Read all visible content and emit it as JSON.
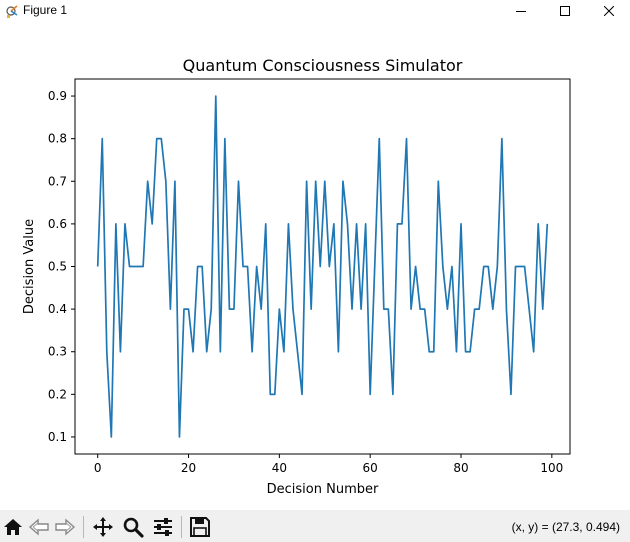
{
  "window": {
    "title": "Figure 1",
    "icons": {
      "app": "matplotlib-figure-icon",
      "minimize": "minimize-icon",
      "maximize": "maximize-icon",
      "close": "close-icon"
    }
  },
  "toolbar": {
    "tools": [
      {
        "name": "home",
        "icon": "home-icon"
      },
      {
        "name": "back",
        "icon": "back-arrow-icon"
      },
      {
        "name": "forward",
        "icon": "forward-arrow-icon"
      },
      {
        "name": "pan",
        "icon": "pan-move-icon"
      },
      {
        "name": "zoom",
        "icon": "zoom-magnifier-icon"
      },
      {
        "name": "configure-subplots",
        "icon": "sliders-icon"
      },
      {
        "name": "save",
        "icon": "save-disk-icon"
      }
    ],
    "coordinates": "(x, y) = (27.3, 0.494)"
  },
  "chart_data": {
    "type": "line",
    "title": "Quantum Consciousness Simulator",
    "xlabel": "Decision Number",
    "ylabel": "Decision Value",
    "xlim": [
      -5,
      104
    ],
    "ylim": [
      0.06,
      0.94
    ],
    "xticks": [
      0,
      20,
      40,
      60,
      80,
      100
    ],
    "yticks": [
      0.1,
      0.2,
      0.3,
      0.4,
      0.5,
      0.6,
      0.7,
      0.8,
      0.9
    ],
    "grid": false,
    "series": [
      {
        "color": "#1f77b4",
        "x": [
          0,
          1,
          2,
          3,
          4,
          5,
          6,
          7,
          8,
          9,
          10,
          11,
          12,
          13,
          14,
          15,
          16,
          17,
          18,
          19,
          20,
          21,
          22,
          23,
          24,
          25,
          26,
          27,
          28,
          29,
          30,
          31,
          32,
          33,
          34,
          35,
          36,
          37,
          38,
          39,
          40,
          41,
          42,
          43,
          44,
          45,
          46,
          47,
          48,
          49,
          50,
          51,
          52,
          53,
          54,
          55,
          56,
          57,
          58,
          59,
          60,
          61,
          62,
          63,
          64,
          65,
          66,
          67,
          68,
          69,
          70,
          71,
          72,
          73,
          74,
          75,
          76,
          77,
          78,
          79,
          80,
          81,
          82,
          83,
          84,
          85,
          86,
          87,
          88,
          89,
          90,
          91,
          92,
          93,
          94,
          95,
          96,
          97,
          98,
          99
        ],
        "y": [
          0.5,
          0.8,
          0.3,
          0.1,
          0.6,
          0.3,
          0.6,
          0.5,
          0.5,
          0.5,
          0.5,
          0.7,
          0.6,
          0.8,
          0.8,
          0.7,
          0.4,
          0.7,
          0.1,
          0.4,
          0.4,
          0.3,
          0.5,
          0.5,
          0.3,
          0.4,
          0.9,
          0.3,
          0.8,
          0.4,
          0.4,
          0.7,
          0.5,
          0.5,
          0.3,
          0.5,
          0.4,
          0.6,
          0.2,
          0.2,
          0.4,
          0.3,
          0.6,
          0.4,
          0.3,
          0.2,
          0.7,
          0.4,
          0.7,
          0.5,
          0.7,
          0.5,
          0.6,
          0.3,
          0.7,
          0.6,
          0.4,
          0.6,
          0.4,
          0.6,
          0.2,
          0.5,
          0.8,
          0.4,
          0.4,
          0.2,
          0.6,
          0.6,
          0.8,
          0.4,
          0.5,
          0.4,
          0.4,
          0.3,
          0.3,
          0.7,
          0.5,
          0.4,
          0.5,
          0.3,
          0.6,
          0.3,
          0.3,
          0.4,
          0.4,
          0.5,
          0.5,
          0.4,
          0.5,
          0.8,
          0.4,
          0.2,
          0.5,
          0.5,
          0.5,
          0.4,
          0.3,
          0.6,
          0.4,
          0.6
        ]
      }
    ]
  }
}
